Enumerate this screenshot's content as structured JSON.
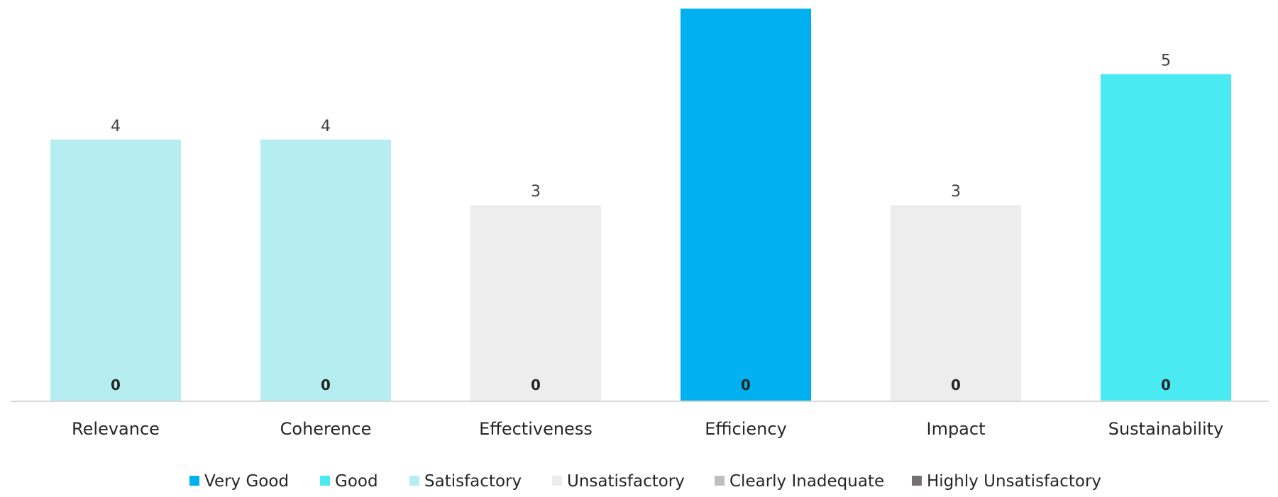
{
  "chart_data": {
    "type": "bar",
    "categories": [
      "Relevance",
      "Coherence",
      "Effectiveness",
      "Efficiency",
      "Impact",
      "Sustainability"
    ],
    "values": [
      4,
      4,
      3,
      6,
      3,
      5
    ],
    "value_labels": [
      "4",
      "4",
      "3",
      "",
      "3",
      "5"
    ],
    "base_labels": [
      "0",
      "0",
      "0",
      "0",
      "0",
      "0"
    ],
    "bar_rating": [
      "Satisfactory",
      "Satisfactory",
      "Unsatisfactory",
      "Very Good",
      "Unsatisfactory",
      "Good"
    ],
    "title": "",
    "xlabel": "",
    "ylabel": "",
    "ylim": [
      0,
      6
    ],
    "grid": false,
    "legend_position": "bottom",
    "legend": [
      {
        "label": "Very Good",
        "color": "#00B0F0"
      },
      {
        "label": "Good",
        "color": "#4AEAF2"
      },
      {
        "label": "Satisfactory",
        "color": "#B6EDF1"
      },
      {
        "label": "Unsatisfactory",
        "color": "#EDEDED"
      },
      {
        "label": "Clearly Inadequate",
        "color": "#BFBFBF"
      },
      {
        "label": "Highly Unsatisfactory",
        "color": "#767171"
      }
    ]
  }
}
